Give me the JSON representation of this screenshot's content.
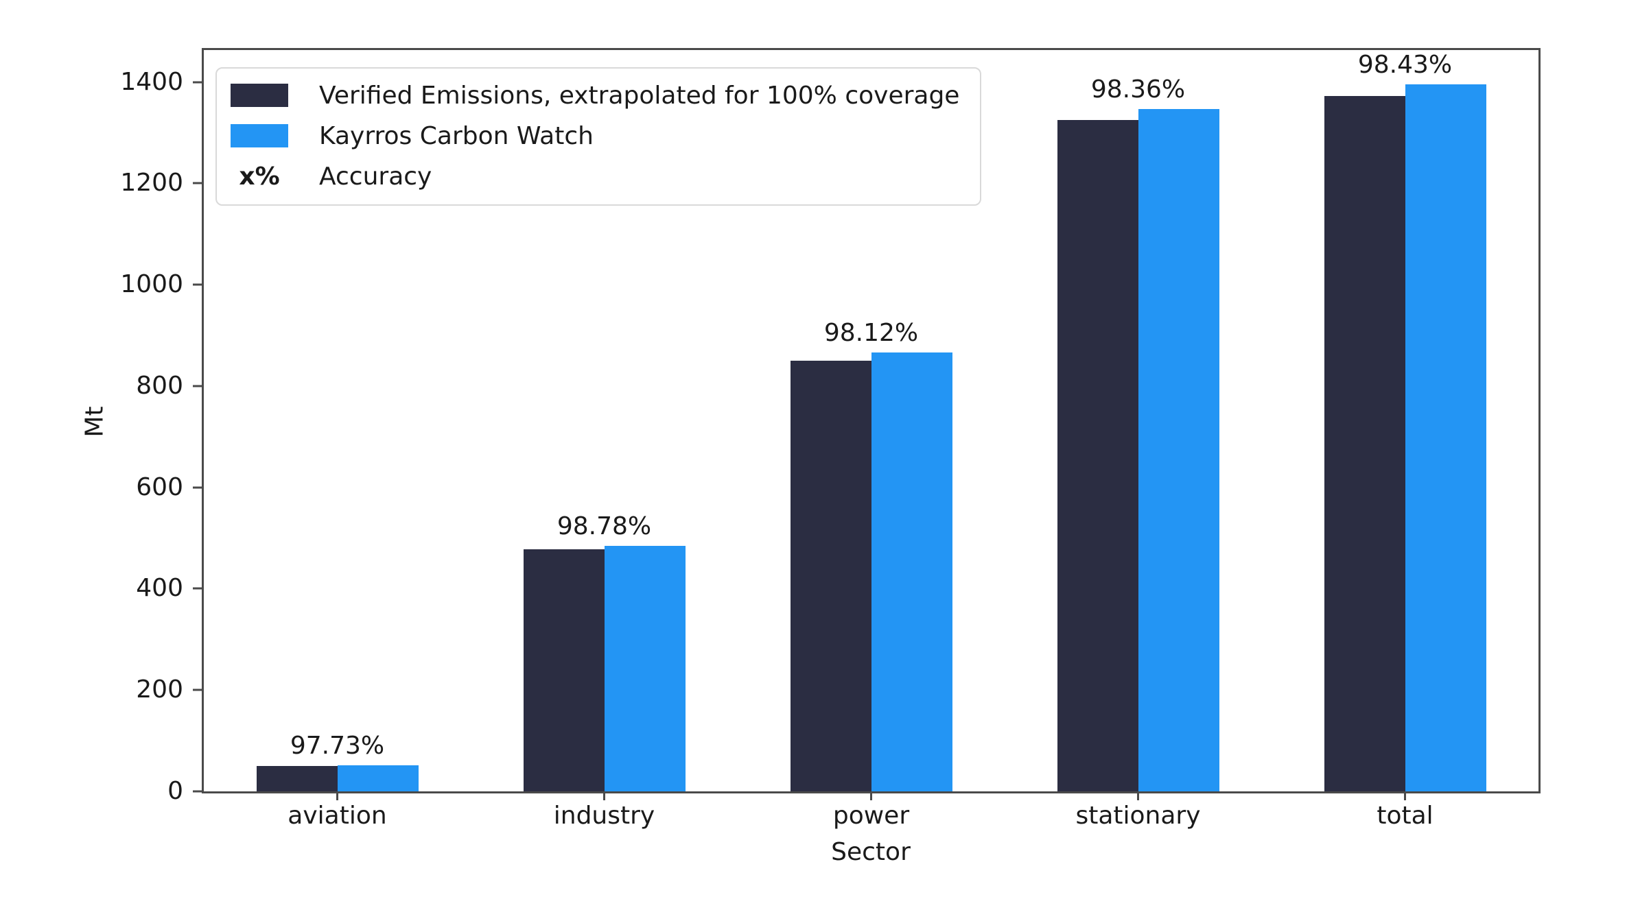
{
  "chart_data": {
    "type": "bar",
    "categories": [
      "aviation",
      "industry",
      "power",
      "stationary",
      "total"
    ],
    "series": [
      {
        "name": "Verified Emissions, extrapolated for 100% coverage",
        "color": "#2b2d42",
        "values": [
          50,
          478,
          850,
          1325,
          1373
        ]
      },
      {
        "name": "Kayrros Carbon Watch",
        "color": "#2395f4",
        "values": [
          51,
          484,
          866,
          1347,
          1395
        ]
      }
    ],
    "accuracy_labels": [
      "97.73%",
      "98.78%",
      "98.12%",
      "98.36%",
      "98.43%"
    ],
    "title": "",
    "xlabel": "Sector",
    "ylabel": "Mt",
    "yticks": [
      0,
      200,
      400,
      600,
      800,
      1000,
      1200,
      1400
    ],
    "ylim": [
      0,
      1463
    ],
    "grid": false,
    "legend_position": "upper left"
  },
  "legend": {
    "items": [
      {
        "swatch": "verified",
        "label": "Verified Emissions, extrapolated for 100% coverage"
      },
      {
        "swatch": "kayrros",
        "label": "Kayrros Carbon Watch"
      },
      {
        "symbol": "x%",
        "label": "Accuracy"
      }
    ]
  },
  "colors": {
    "verified": "#2b2d42",
    "kayrros": "#2395f4",
    "spine": "#4a4a4a",
    "text": "#1a1a1a",
    "legend_border": "#d9d9d9"
  }
}
